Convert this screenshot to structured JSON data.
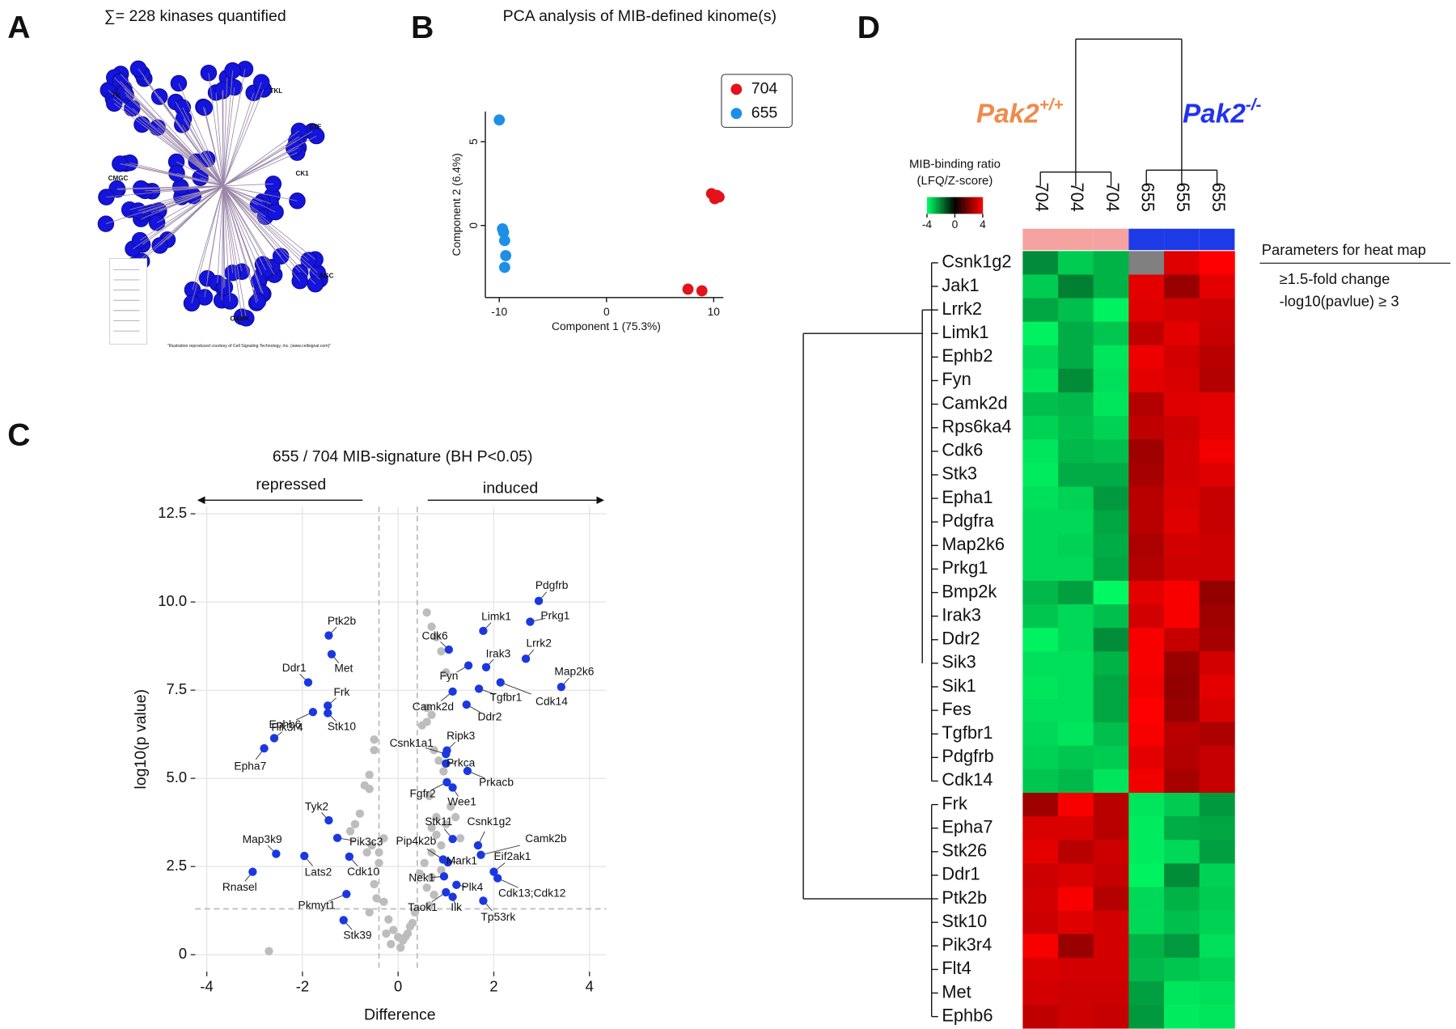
{
  "chart_data": [
    {
      "type": "tree",
      "panel": "A",
      "title": "∑= 228 kinases quantified",
      "groups": [
        "TK",
        "TKL",
        "STE",
        "CMGC",
        "CK1",
        "AGC",
        "CAMK"
      ],
      "credit": "\"Illustration reproduced courtesy of Cell Signaling Technology, Inc. (www.cellsignal.com)\"",
      "color": "#1414dc"
    },
    {
      "type": "scatter",
      "panel": "B",
      "title": "PCA analysis of MIB-defined kinome(s)",
      "x_label": "Component 1 (75.3%)",
      "y_label": "Component 2 (6.4%)",
      "xlim": [
        -11.3,
        10.9
      ],
      "ylim": [
        -4.3,
        6.8
      ],
      "xticks": [
        -10,
        0,
        10
      ],
      "yticks": [
        0,
        5
      ],
      "legend": "top-right",
      "series": [
        {
          "name": "704",
          "color": "#e3121b",
          "x": [
            9.8,
            10.5,
            10.1,
            10.3,
            7.6,
            8.9
          ],
          "values": [
            1.9,
            1.7,
            1.6,
            1.8,
            -3.8,
            -3.9
          ]
        },
        {
          "name": "655",
          "color": "#1e8fe6",
          "x": [
            -10,
            -9.7,
            -9.6,
            -9.5,
            -9.4,
            -9.5
          ],
          "values": [
            6.3,
            -0.2,
            -0.4,
            -0.9,
            -1.8,
            -2.5
          ]
        }
      ]
    },
    {
      "type": "volcano",
      "panel": "C",
      "title": "655 / 704 MIB-signature (BH P<0.05)",
      "left_label": "repressed",
      "right_label": "induced",
      "x_label": "Difference",
      "y_label": "log10(p value)",
      "xlim": [
        -4.24,
        4.35
      ],
      "ylim": [
        -0.48,
        12.7
      ],
      "xticks": [
        -4,
        -2,
        0,
        2,
        4
      ],
      "yticks": [
        0,
        2.5,
        {
          "value": 5,
          "label": "5.0"
        },
        7.5,
        {
          "value": 10,
          "label": "10.0"
        },
        12.5
      ],
      "grid": true,
      "thresholds": {
        "x": [
          -0.4,
          0.4
        ],
        "y": 1.3
      },
      "background": {
        "color": "#bdbdbd",
        "x": [
          0.6,
          0.7,
          0.8,
          0.9,
          1.0,
          0.5,
          0.6,
          0.75,
          0.85,
          0.95,
          1.1,
          1.2,
          0.65,
          0.7,
          0.8,
          -0.5,
          -0.6,
          -0.7,
          -0.8,
          -0.9,
          -1.0,
          -0.55,
          -0.65,
          -0.4,
          -0.3,
          -0.2,
          -0.1,
          0,
          0.1,
          0.2,
          0.3,
          -0.15,
          0.05,
          0.15,
          0.25,
          0.35,
          -0.25,
          0.45,
          0.55,
          0.7,
          0.9,
          1.3,
          0.6,
          0.7,
          -0.5,
          -0.45,
          -0.6,
          0.65,
          0.75,
          0.9,
          -2.7,
          -0.5,
          -0.6,
          0.6,
          0.7,
          0.8,
          1.0,
          -0.4,
          -0.3
        ],
        "y": [
          9.7,
          9.3,
          9.0,
          8.6,
          8.0,
          6.5,
          6.6,
          5.8,
          5.5,
          5.2,
          4.2,
          3.9,
          4.5,
          3.6,
          3.4,
          6.1,
          5.1,
          4.8,
          4.0,
          3.7,
          3.5,
          3.1,
          2.9,
          2.6,
          1.5,
          1.0,
          0.7,
          0.5,
          0.4,
          0.6,
          0.9,
          0.3,
          0.2,
          0.5,
          0.8,
          1.2,
          0.6,
          2.3,
          2.6,
          2.9,
          3.1,
          3.3,
          1.9,
          2.2,
          2.0,
          1.6,
          1.2,
          1.4,
          1.7,
          2.4,
          0.1,
          5.8,
          4.7,
          7.0,
          6.8,
          3.9,
          3.7,
          2.9,
          3.3
        ]
      },
      "labeled": {
        "color": "#1b38e0",
        "names": [
          "Pdgfrb",
          "Prkg1",
          "Limk1",
          "Cdk6",
          "Lrrk2",
          "Irak3",
          "Map2k6",
          "Fyn",
          "Camk2d",
          "Tgfbr1",
          "Cdk14",
          "Ddr2",
          "Ripk3",
          "Csnk1a1",
          "Prkca",
          "Prkacb",
          "Fgfr2",
          "Wee1",
          "Stk11",
          "Csnk1g2",
          "Camk2b",
          "Pip4k2b",
          "Mark1",
          "Eif2ak1",
          "Nek1",
          "Cdk13;Cdk12",
          "Plk4",
          "Taok1",
          "Ilk",
          "Tp53rk",
          "Ptk2b",
          "Met",
          "Ddr1",
          "Frk",
          "Ephb6",
          "Stk10",
          "Pik3r4",
          "Epha7",
          "Tyk2",
          "Pik3c3",
          "Map3k9",
          "Lats2",
          "Cdk10",
          "Rnasel",
          "Pkmyt1",
          "Stk39"
        ],
        "x": [
          2.94,
          2.76,
          1.78,
          1.06,
          2.67,
          1.84,
          3.41,
          1.47,
          1.14,
          1.69,
          2.14,
          1.43,
          1.02,
          1.0,
          1.0,
          1.45,
          1.02,
          1.14,
          1.14,
          1.67,
          1.73,
          0.94,
          1.04,
          2.0,
          0.96,
          2.08,
          1.22,
          1.0,
          1.14,
          1.78,
          -1.45,
          -1.39,
          -1.88,
          -1.47,
          -1.78,
          -1.47,
          -2.59,
          -2.8,
          -1.45,
          -1.27,
          -2.55,
          -1.96,
          -1.02,
          -3.04,
          -1.08,
          -1.14
        ],
        "y": [
          10.03,
          9.44,
          9.18,
          8.65,
          8.39,
          8.15,
          7.59,
          8.2,
          7.46,
          7.54,
          7.72,
          7.09,
          5.79,
          5.69,
          5.42,
          5.21,
          4.89,
          4.74,
          3.28,
          3.1,
          2.83,
          2.7,
          2.62,
          2.35,
          2.22,
          2.17,
          1.98,
          1.77,
          1.64,
          1.53,
          9.05,
          8.52,
          7.72,
          7.06,
          6.88,
          6.85,
          6.14,
          5.85,
          3.81,
          3.31,
          2.86,
          2.8,
          2.78,
          2.35,
          1.72,
          0.98
        ]
      }
    },
    {
      "type": "heatmap",
      "panel": "D",
      "columns": [
        "704",
        "704",
        "704",
        "655",
        "655",
        "655"
      ],
      "rows": [
        "Csnk1g2",
        "Jak1",
        "Lrrk2",
        "Limk1",
        "Ephb2",
        "Fyn",
        "Camk2d",
        "Rps6ka4",
        "Cdk6",
        "Stk3",
        "Epha1",
        "Pdgfra",
        "Map2k6",
        "Prkg1",
        "Bmp2k",
        "Irak3",
        "Ddr2",
        "Sik3",
        "Sik1",
        "Fes",
        "Tgfbr1",
        "Pdgfrb",
        "Cdk14",
        "Frk",
        "Epha7",
        "Stk26",
        "Ddr1",
        "Ptk2b",
        "Stk10",
        "Pik3r4",
        "Flt4",
        "Met",
        "Ephb6"
      ],
      "values": [
        [
          -2.2,
          -3.2,
          -2.8,
          null,
          3.5,
          4
        ],
        [
          -3.2,
          -2.0,
          -2.8,
          3.6,
          2.4,
          3.6
        ],
        [
          -2.6,
          -3,
          -3.8,
          3.5,
          3.3,
          3.2
        ],
        [
          -3.8,
          -2.7,
          -3.1,
          3.0,
          3.6,
          3.1
        ],
        [
          -3.4,
          -2.7,
          -3.6,
          3.7,
          3.3,
          2.9
        ],
        [
          -3.6,
          -2.2,
          -3.5,
          3.6,
          3.4,
          2.8
        ],
        [
          -3.0,
          -2.9,
          -3.6,
          2.8,
          3.5,
          3.6
        ],
        [
          -3.3,
          -3.0,
          -3.3,
          3.0,
          3.2,
          3.6
        ],
        [
          -3.6,
          -2.9,
          -3.0,
          2.5,
          3.3,
          3.8
        ],
        [
          -3.7,
          -2.7,
          -2.7,
          2.6,
          3.3,
          3.5
        ],
        [
          -3.5,
          -3.3,
          -2.4,
          2.9,
          3.4,
          3.1
        ],
        [
          -3.4,
          -3.4,
          -2.6,
          2.9,
          3.5,
          3.1
        ],
        [
          -3.4,
          -3.3,
          -2.7,
          2.7,
          3.3,
          3.2
        ],
        [
          -3.4,
          -3.4,
          -2.6,
          2.8,
          3.2,
          3.2
        ],
        [
          -2.9,
          -2.5,
          -3.9,
          3.6,
          3.9,
          2.3
        ],
        [
          -3.1,
          -3.4,
          -3.0,
          3.3,
          3.9,
          2.5
        ],
        [
          -3.8,
          -3.4,
          -2.2,
          3.9,
          3.1,
          2.6
        ],
        [
          -3.5,
          -3.5,
          -2.8,
          3.9,
          2.4,
          3.3
        ],
        [
          -3.6,
          -3.5,
          -2.6,
          3.8,
          2.3,
          3.6
        ],
        [
          -3.5,
          -3.5,
          -2.6,
          4.0,
          2.4,
          3.4
        ],
        [
          -3.4,
          -3.6,
          -3.0,
          3.9,
          2.9,
          2.7
        ],
        [
          -3.3,
          -3.1,
          -3.2,
          3.6,
          2.8,
          3.1
        ],
        [
          -3.1,
          -2.9,
          -3.6,
          3.8,
          2.6,
          3.1
        ],
        [
          2.5,
          3.9,
          2.9,
          -3.6,
          -3.2,
          -2.4
        ],
        [
          3.4,
          3.4,
          2.9,
          -3.7,
          -2.7,
          -2.6
        ],
        [
          3.6,
          2.9,
          3.2,
          -3.7,
          -3.4,
          -2.5
        ],
        [
          3.2,
          3.4,
          3.1,
          -3.8,
          -2.2,
          -3.3
        ],
        [
          3.3,
          3.9,
          2.8,
          -3.4,
          -2.8,
          -3.2
        ],
        [
          3.2,
          3.5,
          3.3,
          -3.4,
          -3.0,
          -3.3
        ],
        [
          3.9,
          2.4,
          3.3,
          -2.8,
          -2.4,
          -3.5
        ],
        [
          3.4,
          3.3,
          3.3,
          -2.9,
          -3.1,
          -3.3
        ],
        [
          3.3,
          3.2,
          3.2,
          -2.5,
          -3.6,
          -3.5
        ],
        [
          3.0,
          3.2,
          3.1,
          -2.4,
          -3.7,
          -3.6
        ]
      ],
      "clim": [
        -4,
        4
      ],
      "colors": [
        "#00ff66",
        "#000000",
        "#ff0000"
      ],
      "null_color": "#808080",
      "colorbar_title": "MIB-binding ratio",
      "colorbar_subtitle": "(LFQ/Z-score)",
      "colorbar_ticks": [
        -4,
        0,
        4
      ],
      "groups": [
        {
          "text": "Pak2",
          "sup": "+/+",
          "color": "#f08a4b",
          "bar_color": "#f4a3a0"
        },
        {
          "text": "Pak2",
          "sup": "-/-",
          "color": "#2233ee",
          "bar_color": "#1c3be6"
        }
      ],
      "notes": {
        "title": "Parameters for heat map",
        "lines": [
          "≥1.5-fold change",
          "-log10(pavlue) ≥ 3"
        ]
      }
    }
  ]
}
